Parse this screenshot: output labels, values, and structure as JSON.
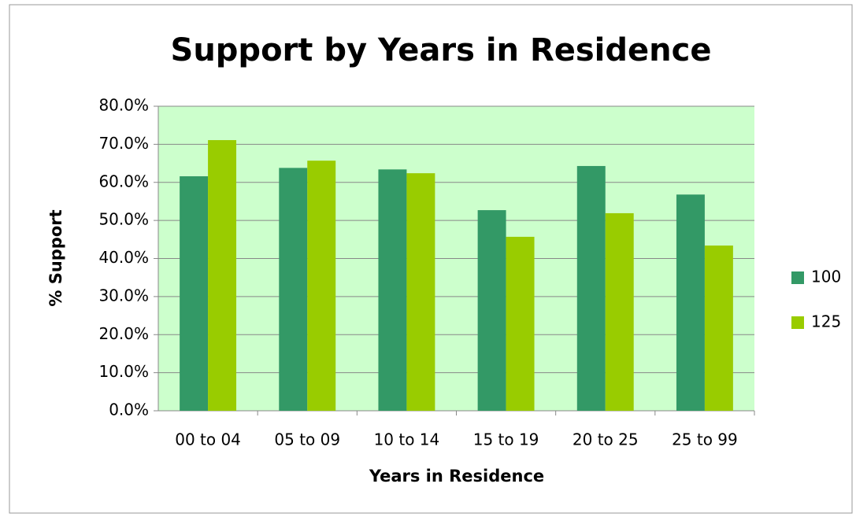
{
  "chart_data": {
    "type": "bar",
    "title": "Support by Years in Residence",
    "x_label": "Years in Residence",
    "y_label": "% Support",
    "categories": [
      "00 to 04",
      "05 to 09",
      "10 to 14",
      "15 to 19",
      "20 to 25",
      "25 to 99"
    ],
    "series": [
      {
        "name": "100",
        "color": "#339966",
        "values": [
          61.6,
          63.8,
          63.4,
          52.7,
          64.3,
          56.8
        ]
      },
      {
        "name": "125",
        "color": "#99cc00",
        "values": [
          71.1,
          65.7,
          62.4,
          45.7,
          51.9,
          43.4
        ]
      }
    ],
    "ylim": [
      0,
      80
    ],
    "yticks": [
      {
        "value": 0,
        "label": "0.0%"
      },
      {
        "value": 10,
        "label": "10.0%"
      },
      {
        "value": 20,
        "label": "20.0%"
      },
      {
        "value": 30,
        "label": "30.0%"
      },
      {
        "value": 40,
        "label": "40.0%"
      },
      {
        "value": 50,
        "label": "50.0%"
      },
      {
        "value": 60,
        "label": "60.0%"
      },
      {
        "value": 70,
        "label": "70.0%"
      },
      {
        "value": 80,
        "label": "80.0%"
      }
    ],
    "grid": true,
    "legend": "right",
    "plot_background": "#ccffcc"
  }
}
